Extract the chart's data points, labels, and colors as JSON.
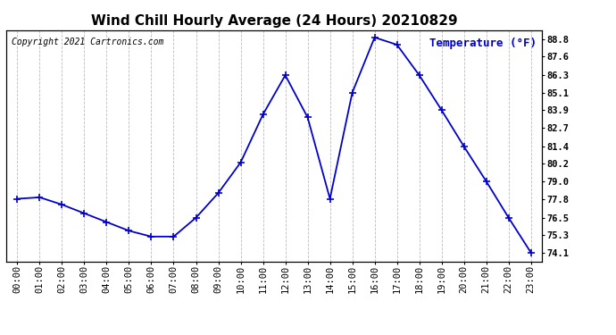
{
  "title": "Wind Chill Hourly Average (24 Hours) 20210829",
  "temp_label": "Temperature (°F)",
  "copyright_text": "Copyright 2021 Cartronics.com",
  "line_color": "#0000cc",
  "background_color": "#ffffff",
  "grid_color": "#bbbbbb",
  "hours": [
    "00:00",
    "01:00",
    "02:00",
    "03:00",
    "04:00",
    "05:00",
    "06:00",
    "07:00",
    "08:00",
    "09:00",
    "10:00",
    "11:00",
    "12:00",
    "13:00",
    "14:00",
    "15:00",
    "16:00",
    "17:00",
    "18:00",
    "19:00",
    "20:00",
    "21:00",
    "22:00",
    "23:00"
  ],
  "values": [
    77.8,
    77.9,
    77.4,
    76.8,
    76.2,
    75.6,
    75.2,
    75.2,
    76.5,
    78.2,
    80.3,
    83.6,
    86.3,
    83.4,
    77.8,
    85.1,
    88.9,
    88.4,
    86.3,
    83.9,
    81.4,
    79.0,
    76.5,
    74.1
  ],
  "yticks": [
    74.1,
    75.3,
    76.5,
    77.8,
    79.0,
    80.2,
    81.4,
    82.7,
    83.9,
    85.1,
    86.3,
    87.6,
    88.8
  ],
  "ylim_min": 73.5,
  "ylim_max": 89.4,
  "marker": "+",
  "marker_size": 6,
  "marker_edge_width": 1.2,
  "line_width": 1.3,
  "title_fontsize": 11,
  "label_fontsize": 9,
  "tick_fontsize": 7.5,
  "copyright_fontsize": 7
}
